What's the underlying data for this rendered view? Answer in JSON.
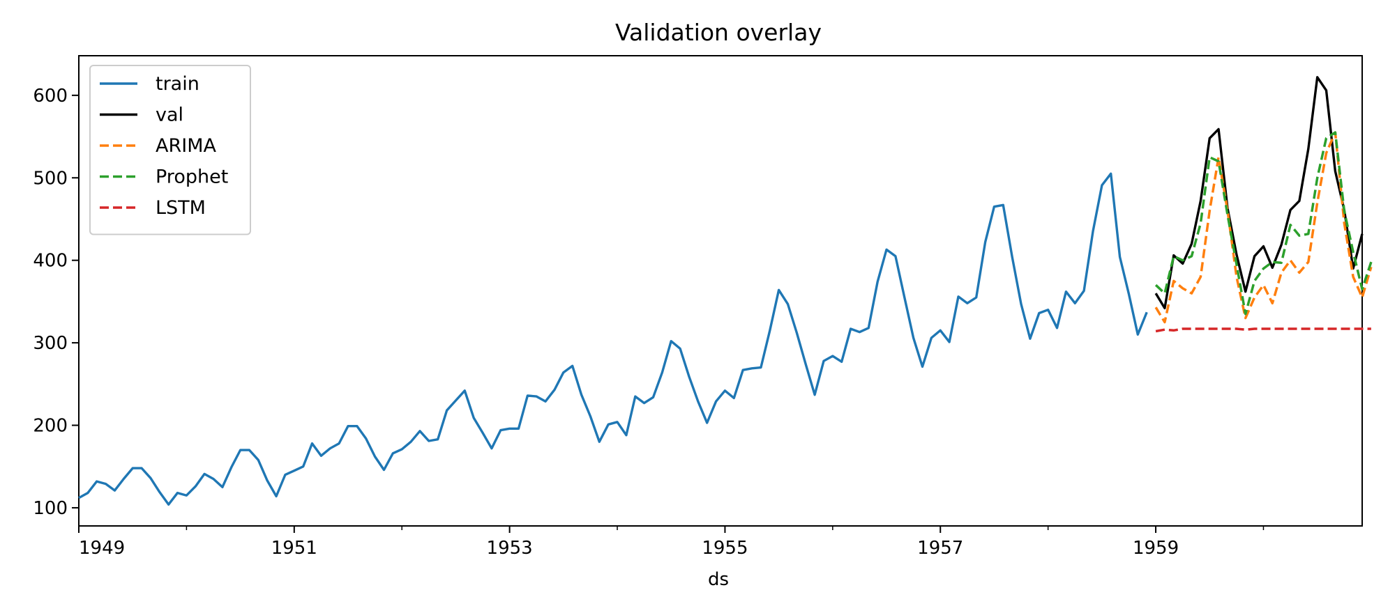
{
  "chart_data": {
    "type": "line",
    "title": "Validation overlay",
    "xlabel": "ds",
    "ylabel": "",
    "xlim": [
      "1949-01",
      "1960-12"
    ],
    "ylim": [
      78,
      648
    ],
    "x_ticks": [
      "1949",
      "1951",
      "1953",
      "1955",
      "1957",
      "1959"
    ],
    "y_ticks": [
      100,
      200,
      300,
      400,
      500,
      600
    ],
    "grid": false,
    "legend": "top-left",
    "series": [
      {
        "name": "train",
        "color": "#1f77b4",
        "style": "solid",
        "start": "1949-01",
        "values": [
          112,
          118,
          132,
          129,
          121,
          135,
          148,
          148,
          136,
          119,
          104,
          118,
          115,
          126,
          141,
          135,
          125,
          149,
          170,
          170,
          158,
          133,
          114,
          140,
          145,
          150,
          178,
          163,
          172,
          178,
          199,
          199,
          184,
          162,
          146,
          166,
          171,
          180,
          193,
          181,
          183,
          218,
          230,
          242,
          209,
          191,
          172,
          194,
          196,
          196,
          236,
          235,
          229,
          243,
          264,
          272,
          237,
          211,
          180,
          201,
          204,
          188,
          235,
          227,
          234,
          264,
          302,
          293,
          259,
          229,
          203,
          229,
          242,
          233,
          267,
          269,
          270,
          315,
          364,
          347,
          312,
          274,
          237,
          278,
          284,
          277,
          317,
          313,
          318,
          374,
          413,
          405,
          355,
          306,
          271,
          306,
          315,
          301,
          356,
          348,
          355,
          422,
          465,
          467,
          404,
          347,
          305,
          336,
          340,
          318,
          362,
          348,
          363,
          435,
          491,
          505,
          404,
          359,
          310,
          337
        ]
      },
      {
        "name": "val",
        "color": "#000000",
        "style": "solid",
        "start": "1959-01",
        "values": [
          360,
          342,
          406,
          396,
          420,
          472,
          548,
          559,
          463,
          407,
          362,
          405,
          417,
          391,
          419,
          461,
          472,
          535,
          622,
          606,
          508,
          461,
          390,
          432
        ]
      },
      {
        "name": "ARIMA",
        "color": "#ff7f0e",
        "style": "dashed",
        "start": "1959-01",
        "values": [
          343,
          325,
          375,
          366,
          360,
          380,
          460,
          525,
          460,
          380,
          330,
          355,
          370,
          348,
          385,
          400,
          385,
          398,
          470,
          530,
          555,
          445,
          380,
          355,
          392
        ]
      },
      {
        "name": "Prophet",
        "color": "#2ca02c",
        "style": "dashed",
        "start": "1959-01",
        "values": [
          370,
          360,
          405,
          400,
          405,
          445,
          525,
          520,
          455,
          395,
          335,
          375,
          390,
          398,
          397,
          443,
          430,
          432,
          500,
          548,
          555,
          460,
          410,
          365,
          398
        ]
      },
      {
        "name": "LSTM",
        "color": "#d62728",
        "style": "dashed",
        "start": "1959-01",
        "values": [
          314,
          316,
          315,
          317,
          317,
          317,
          317,
          317,
          317,
          317,
          316,
          317,
          317,
          317,
          317,
          317,
          317,
          317,
          317,
          317,
          317,
          317,
          317,
          317,
          317
        ]
      }
    ]
  }
}
